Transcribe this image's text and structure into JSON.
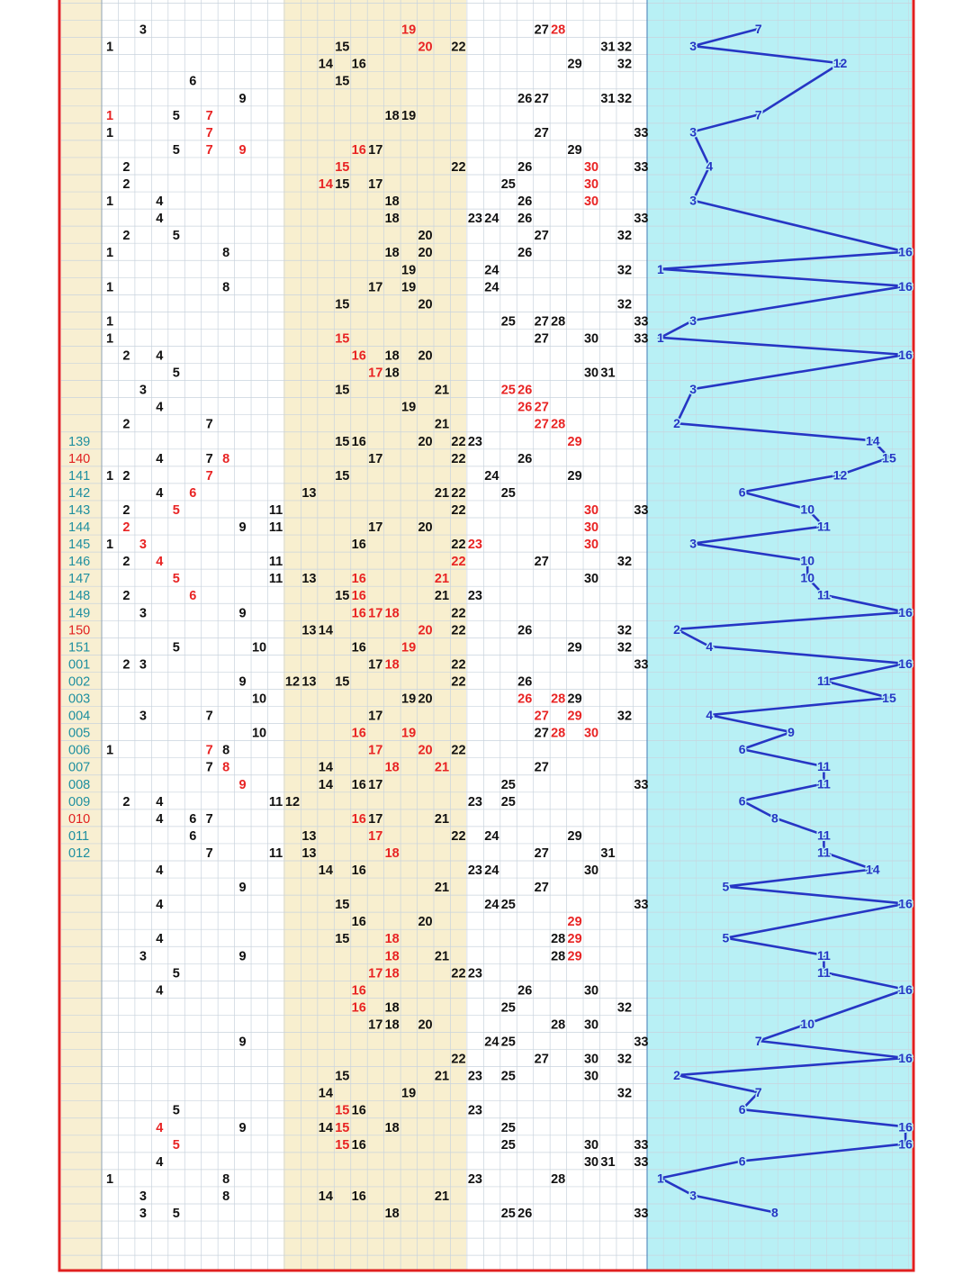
{
  "colors": {
    "background": "#ffffff",
    "grid": "#c9d3dd",
    "border": "#e02020",
    "period_column_bg": "#f8efd2",
    "band_bg": "#f8efcf",
    "trend_bg": "#b8f0f5",
    "number_black": "#111111",
    "number_red": "#e82424",
    "period_teal": "#1e8fa0",
    "period_red": "#e02020",
    "trend_line": "#2636c4"
  },
  "chart_data": {
    "type": "table",
    "title": "",
    "start_row": -1,
    "rows": [
      {
        "period": "",
        "balls": [
          3,
          19,
          27,
          28
        ],
        "red": [
          19,
          28
        ],
        "trend": 7
      },
      {
        "period": "",
        "balls": [
          1,
          15,
          20,
          22,
          31,
          32
        ],
        "red": [
          20
        ],
        "trend": 3
      },
      {
        "period": "",
        "balls": [
          14,
          16,
          29,
          32
        ],
        "red": [],
        "trend": 12
      },
      {
        "period": "",
        "balls": [
          6,
          15
        ],
        "red": [],
        "trend": null
      },
      {
        "period": "",
        "balls": [
          9,
          26,
          27,
          31,
          32
        ],
        "red": [],
        "trend": null
      },
      {
        "period": "",
        "balls": [
          1,
          5,
          7,
          18,
          19
        ],
        "red": [
          1,
          7
        ],
        "trend": 7
      },
      {
        "period": "",
        "balls": [
          1,
          7,
          27,
          33
        ],
        "red": [
          7
        ],
        "trend": 3
      },
      {
        "period": "",
        "balls": [
          5,
          7,
          9,
          16,
          17,
          29
        ],
        "red": [
          7,
          9,
          16
        ],
        "trend": null
      },
      {
        "period": "",
        "balls": [
          2,
          15,
          22,
          26,
          30,
          33
        ],
        "red": [
          15,
          30
        ],
        "trend": 4
      },
      {
        "period": "",
        "balls": [
          2,
          14,
          15,
          17,
          25,
          30
        ],
        "red": [
          14,
          30
        ],
        "trend": null
      },
      {
        "period": "",
        "balls": [
          1,
          4,
          18,
          26,
          30
        ],
        "red": [
          30
        ],
        "trend": 3
      },
      {
        "period": "",
        "balls": [
          4,
          18,
          23,
          24,
          26,
          33
        ],
        "red": [],
        "trend": null
      },
      {
        "period": "",
        "balls": [
          2,
          5,
          20,
          27,
          32
        ],
        "red": [],
        "trend": null
      },
      {
        "period": "",
        "balls": [
          1,
          8,
          18,
          20,
          26
        ],
        "red": [],
        "trend": 16
      },
      {
        "period": "",
        "balls": [
          19,
          24,
          32
        ],
        "red": [],
        "trend": 1
      },
      {
        "period": "",
        "balls": [
          1,
          8,
          17,
          19,
          24
        ],
        "red": [],
        "trend": 16
      },
      {
        "period": "",
        "balls": [
          15,
          20,
          32
        ],
        "red": [],
        "trend": null
      },
      {
        "period": "",
        "balls": [
          1,
          25,
          27,
          28,
          33
        ],
        "red": [],
        "trend": 3
      },
      {
        "period": "",
        "balls": [
          1,
          15,
          27,
          30,
          33
        ],
        "red": [
          15
        ],
        "trend": 1
      },
      {
        "period": "",
        "balls": [
          2,
          4,
          16,
          18,
          20
        ],
        "red": [
          16
        ],
        "trend": 16
      },
      {
        "period": "",
        "balls": [
          5,
          17,
          18,
          30,
          31
        ],
        "red": [
          17
        ],
        "trend": null
      },
      {
        "period": "",
        "balls": [
          3,
          15,
          21,
          25,
          26
        ],
        "red": [
          25,
          26
        ],
        "trend": 3
      },
      {
        "period": "",
        "balls": [
          4,
          19,
          26,
          27
        ],
        "red": [
          26,
          27
        ],
        "trend": null
      },
      {
        "period": "",
        "balls": [
          2,
          7,
          21,
          27,
          28
        ],
        "red": [
          27,
          28
        ],
        "trend": 2
      },
      {
        "period": "139",
        "balls": [
          15,
          16,
          20,
          22,
          23,
          29
        ],
        "red": [
          29
        ],
        "trend": 14
      },
      {
        "period": "140",
        "balls": [
          4,
          7,
          8,
          17,
          22,
          26
        ],
        "red": [
          8
        ],
        "trend": 15
      },
      {
        "period": "141",
        "balls": [
          1,
          2,
          7,
          15,
          24,
          29
        ],
        "red": [
          7
        ],
        "trend": 12
      },
      {
        "period": "142",
        "balls": [
          4,
          6,
          13,
          21,
          22,
          25
        ],
        "red": [
          6
        ],
        "trend": 6
      },
      {
        "period": "143",
        "balls": [
          2,
          5,
          11,
          22,
          30,
          33
        ],
        "red": [
          5,
          30
        ],
        "trend": 10
      },
      {
        "period": "144",
        "balls": [
          2,
          9,
          11,
          17,
          20,
          30
        ],
        "red": [
          2,
          30
        ],
        "trend": 11
      },
      {
        "period": "145",
        "balls": [
          1,
          3,
          16,
          22,
          23,
          30
        ],
        "red": [
          3,
          23,
          30
        ],
        "trend": 3
      },
      {
        "period": "146",
        "balls": [
          2,
          4,
          11,
          22,
          27,
          32
        ],
        "red": [
          4,
          22
        ],
        "trend": 10
      },
      {
        "period": "147",
        "balls": [
          5,
          11,
          13,
          16,
          21,
          30
        ],
        "red": [
          5,
          16,
          21
        ],
        "trend": 10
      },
      {
        "period": "148",
        "balls": [
          2,
          6,
          15,
          16,
          21,
          23
        ],
        "red": [
          6,
          16
        ],
        "trend": 11
      },
      {
        "period": "149",
        "balls": [
          3,
          9,
          16,
          17,
          18,
          22
        ],
        "red": [
          16,
          17,
          18
        ],
        "trend": 16
      },
      {
        "period": "150",
        "balls": [
          13,
          14,
          20,
          22,
          26,
          32
        ],
        "red": [
          20
        ],
        "trend": 2
      },
      {
        "period": "151",
        "balls": [
          5,
          10,
          16,
          19,
          29,
          32
        ],
        "red": [
          19
        ],
        "trend": 4
      },
      {
        "period": "001",
        "balls": [
          2,
          3,
          17,
          18,
          22,
          33
        ],
        "red": [
          18
        ],
        "trend": 16
      },
      {
        "period": "002",
        "balls": [
          9,
          12,
          13,
          15,
          22,
          26
        ],
        "red": [],
        "trend": 11
      },
      {
        "period": "003",
        "balls": [
          10,
          19,
          20,
          26,
          28,
          29
        ],
        "red": [
          26,
          28
        ],
        "trend": 15
      },
      {
        "period": "004",
        "balls": [
          3,
          7,
          17,
          27,
          29,
          32
        ],
        "red": [
          27,
          29
        ],
        "trend": 4
      },
      {
        "period": "005",
        "balls": [
          10,
          16,
          19,
          27,
          28,
          30
        ],
        "red": [
          16,
          19,
          28,
          30
        ],
        "trend": 9
      },
      {
        "period": "006",
        "balls": [
          1,
          7,
          8,
          17,
          20,
          22
        ],
        "red": [
          7,
          17,
          20
        ],
        "trend": 6
      },
      {
        "period": "007",
        "balls": [
          7,
          8,
          14,
          18,
          21,
          27
        ],
        "red": [
          8,
          18,
          21
        ],
        "trend": 11
      },
      {
        "period": "008",
        "balls": [
          9,
          14,
          16,
          17,
          25,
          33
        ],
        "red": [
          9
        ],
        "trend": 11
      },
      {
        "period": "009",
        "balls": [
          2,
          4,
          11,
          12,
          23,
          25
        ],
        "red": [],
        "trend": 6
      },
      {
        "period": "010",
        "balls": [
          4,
          6,
          7,
          16,
          17,
          21
        ],
        "red": [
          16
        ],
        "trend": 8
      },
      {
        "period": "011",
        "balls": [
          6,
          13,
          17,
          22,
          24,
          29
        ],
        "red": [
          17
        ],
        "trend": 11
      },
      {
        "period": "012",
        "balls": [
          7,
          11,
          13,
          18,
          27,
          31
        ],
        "red": [
          18
        ],
        "trend": 11
      },
      {
        "period": "",
        "balls": [
          4,
          14,
          16,
          23,
          24,
          30
        ],
        "red": [],
        "trend": 14
      },
      {
        "period": "",
        "balls": [
          9,
          21,
          27
        ],
        "red": [],
        "trend": 5
      },
      {
        "period": "",
        "balls": [
          4,
          15,
          24,
          25,
          33
        ],
        "red": [],
        "trend": 16
      },
      {
        "period": "",
        "balls": [
          16,
          20,
          29
        ],
        "red": [
          29
        ],
        "trend": null
      },
      {
        "period": "",
        "balls": [
          4,
          15,
          18,
          28,
          29
        ],
        "red": [
          18,
          29
        ],
        "trend": 5
      },
      {
        "period": "",
        "balls": [
          3,
          9,
          18,
          21,
          28,
          29
        ],
        "red": [
          18,
          29
        ],
        "trend": 11
      },
      {
        "period": "",
        "balls": [
          5,
          17,
          18,
          22,
          23
        ],
        "red": [
          17,
          18
        ],
        "trend": 11
      },
      {
        "period": "",
        "balls": [
          4,
          16,
          26,
          30
        ],
        "red": [
          16
        ],
        "trend": 16
      },
      {
        "period": "",
        "balls": [
          16,
          18,
          25,
          32
        ],
        "red": [
          16
        ],
        "trend": null
      },
      {
        "period": "",
        "balls": [
          17,
          18,
          20,
          28,
          30
        ],
        "red": [],
        "trend": 10
      },
      {
        "period": "",
        "balls": [
          9,
          24,
          25,
          33
        ],
        "red": [],
        "trend": 7
      },
      {
        "period": "",
        "balls": [
          22,
          27,
          30,
          32
        ],
        "red": [],
        "trend": 16
      },
      {
        "period": "",
        "balls": [
          15,
          21,
          23,
          25,
          30
        ],
        "red": [],
        "trend": 2
      },
      {
        "period": "",
        "balls": [
          14,
          19,
          32
        ],
        "red": [],
        "trend": 7
      },
      {
        "period": "",
        "balls": [
          5,
          15,
          16,
          23
        ],
        "red": [
          15
        ],
        "trend": 6
      },
      {
        "period": "",
        "balls": [
          4,
          9,
          14,
          15,
          18,
          25
        ],
        "red": [
          4,
          15
        ],
        "trend": 16
      },
      {
        "period": "",
        "balls": [
          5,
          15,
          16,
          25,
          30,
          33
        ],
        "red": [
          5,
          15
        ],
        "trend": 16
      },
      {
        "period": "",
        "balls": [
          4,
          30,
          31,
          33
        ],
        "red": [],
        "trend": 6
      },
      {
        "period": "",
        "balls": [
          1,
          8,
          23,
          28
        ],
        "red": [],
        "trend": 1
      },
      {
        "period": "",
        "balls": [
          3,
          8,
          14,
          16,
          21
        ],
        "red": [],
        "trend": 3
      },
      {
        "period": "",
        "balls": [
          3,
          5,
          18,
          25,
          26,
          33
        ],
        "red": [],
        "trend": 8
      }
    ]
  }
}
